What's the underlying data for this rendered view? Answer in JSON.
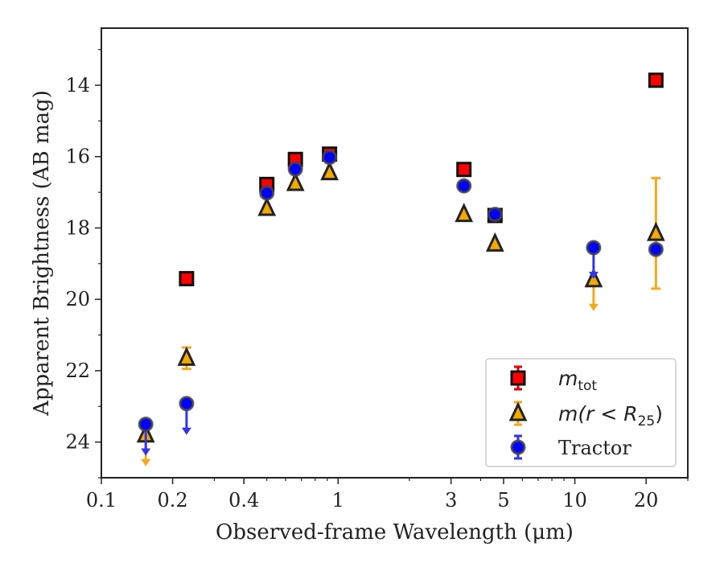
{
  "chart_data": {
    "type": "scatter",
    "xlabel": "Observed-frame Wavelength (μm)",
    "ylabel": "Apparent Brightness (AB mag)",
    "x_scale": "log",
    "y_inverted": true,
    "xlim": [
      0.1,
      30
    ],
    "ylim": [
      25,
      12.4
    ],
    "x_ticks": [
      0.1,
      0.2,
      0.4,
      1,
      3,
      5,
      10,
      20
    ],
    "x_tick_labels": [
      "0.1",
      "0.2",
      "0.4",
      "1",
      "3",
      "5",
      "10",
      "20"
    ],
    "y_ticks": [
      14,
      16,
      18,
      20,
      22,
      24
    ],
    "y_tick_labels": [
      "14",
      "16",
      "18",
      "20",
      "22",
      "24"
    ],
    "grid": false,
    "legend_position": "lower-right",
    "series": [
      {
        "name": "m_tot",
        "legend_text": "m",
        "legend_sub": "tot",
        "marker": "square",
        "color": "#ff0000",
        "edge": "#111111",
        "errcolor": "#dd0000",
        "points": [
          {
            "x": 0.229,
            "y": 19.42
          },
          {
            "x": 0.5,
            "y": 16.78
          },
          {
            "x": 0.66,
            "y": 16.08
          },
          {
            "x": 0.92,
            "y": 15.93
          },
          {
            "x": 3.4,
            "y": 16.36
          },
          {
            "x": 4.6,
            "y": 17.65
          },
          {
            "x": 22.0,
            "y": 13.86
          }
        ]
      },
      {
        "name": "m(r < R25)",
        "legend_text": "m(r < R",
        "legend_sub": "25",
        "legend_tail": ")",
        "marker": "triangle",
        "color": "#f2a900",
        "edge": "#222222",
        "errcolor": "#f7a81b",
        "points": [
          {
            "x": 0.154,
            "y": 23.8,
            "upper_limit": true
          },
          {
            "x": 0.229,
            "y": 21.65,
            "yerr": 0.3
          },
          {
            "x": 0.5,
            "y": 17.45
          },
          {
            "x": 0.66,
            "y": 16.75
          },
          {
            "x": 0.92,
            "y": 16.45
          },
          {
            "x": 3.4,
            "y": 17.62
          },
          {
            "x": 4.6,
            "y": 18.45
          },
          {
            "x": 12.0,
            "y": 19.45,
            "upper_limit": true
          },
          {
            "x": 22.0,
            "y": 18.15,
            "yerr_lo": 1.55,
            "yerr_hi": 1.55
          }
        ]
      },
      {
        "name": "Tractor",
        "marker": "circle",
        "color": "#0000ff",
        "edge": "#444444",
        "errcolor": "#3333ee",
        "points": [
          {
            "x": 0.154,
            "y": 23.5,
            "upper_limit": true
          },
          {
            "x": 0.229,
            "y": 22.92,
            "upper_limit": true
          },
          {
            "x": 0.5,
            "y": 17.02
          },
          {
            "x": 0.66,
            "y": 16.35
          },
          {
            "x": 0.92,
            "y": 16.02
          },
          {
            "x": 3.4,
            "y": 16.82
          },
          {
            "x": 4.6,
            "y": 17.62
          },
          {
            "x": 12.0,
            "y": 18.55,
            "upper_limit": true
          },
          {
            "x": 22.0,
            "y": 18.6
          }
        ]
      }
    ]
  }
}
